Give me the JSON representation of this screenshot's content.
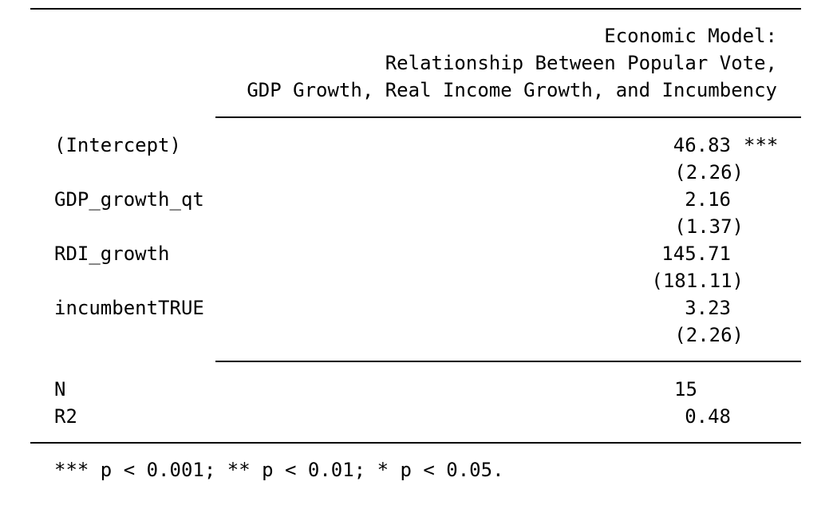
{
  "table": {
    "header_lines": [
      "Economic Model:",
      "Relationship Between Popular Vote,",
      "GDP Growth, Real Income Growth, and Incumbency"
    ],
    "rows": [
      {
        "term": "(Intercept)",
        "estimate": "46.83",
        "stars": "***",
        "se": "(2.26)"
      },
      {
        "term": "GDP_growth_qt",
        "estimate": "2.16",
        "stars": "",
        "se": "(1.37)"
      },
      {
        "term": "RDI_growth",
        "estimate": "145.71",
        "stars": "",
        "se": "(181.11)"
      },
      {
        "term": "incumbentTRUE",
        "estimate": "3.23",
        "stars": "",
        "se": "(2.26)"
      }
    ],
    "stats": [
      {
        "label": "N",
        "value": "15"
      },
      {
        "label": "R2",
        "value": "0.48"
      }
    ],
    "footnote": "*** p < 0.001; ** p < 0.01; * p < 0.05."
  }
}
